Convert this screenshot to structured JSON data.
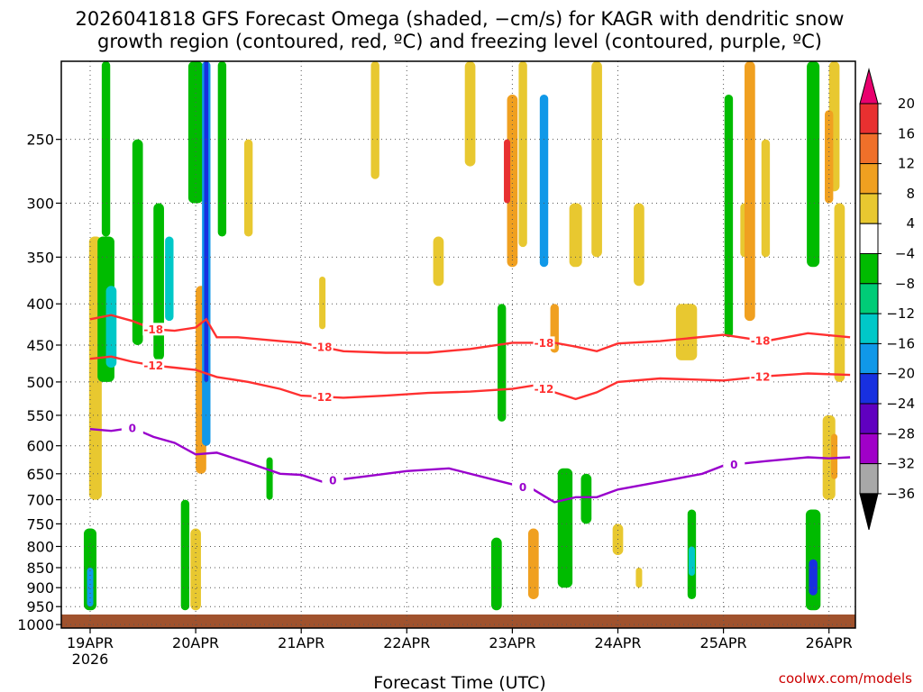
{
  "title": {
    "line1": "2026041818 GFS Forecast Omega (shaded, −cm/s) for KAGR with dendritic snow",
    "line2": "growth region (contoured, red, ºC) and freezing level (contoured, purple, ºC)"
  },
  "credit": "coolwx.com/models",
  "chart_data": {
    "type": "heatmap",
    "title": "2026041818 GFS Forecast Omega (shaded, −cm/s) for KAGR with dendritic snow growth region (contoured, red, ºC) and freezing level (contoured, purple, ºC)",
    "xlabel": "Forecast Time (UTC)",
    "ylabel": "",
    "x_ticks": [
      "19APR",
      "20APR",
      "21APR",
      "22APR",
      "23APR",
      "24APR",
      "25APR",
      "26APR"
    ],
    "x_tick_year": "2026",
    "x_range_days": [
      0.0,
      7.2
    ],
    "y_ticks": [
      250,
      300,
      350,
      400,
      450,
      500,
      550,
      600,
      650,
      700,
      750,
      800,
      850,
      900,
      950,
      1000
    ],
    "y_range_hpa": [
      1010,
      200
    ],
    "y_scale": "log-pressure (reversed)",
    "grid": true,
    "colorbar": {
      "labels": [
        "20",
        "16",
        "12",
        "8",
        "4",
        "−4",
        "−8",
        "−12",
        "−16",
        "−20",
        "−24",
        "−28",
        "−32",
        "−36"
      ],
      "colors": [
        "#e8006e",
        "#e83030",
        "#f0702a",
        "#f0a020",
        "#e8c830",
        "#ffffff",
        "#00bb00",
        "#00cc77",
        "#00c8c8",
        "#1098e8",
        "#1830e0",
        "#6000c0",
        "#a000c8",
        "#a8a8a8",
        "#000000"
      ]
    },
    "contours": [
      {
        "name": "-18",
        "color": "#ff3030",
        "x": [
          0.0,
          0.2,
          0.4,
          0.6,
          0.8,
          1.0,
          1.1,
          1.2,
          1.4,
          1.8,
          2.0,
          2.4,
          2.8,
          3.2,
          3.6,
          4.0,
          4.4,
          4.6,
          4.8,
          5.0,
          5.4,
          6.0,
          6.4,
          6.8,
          7.2
        ],
        "y": [
          418,
          413,
          420,
          430,
          432,
          428,
          418,
          440,
          440,
          445,
          447,
          458,
          460,
          460,
          455,
          447,
          447,
          452,
          458,
          448,
          445,
          437,
          445,
          435,
          440
        ]
      },
      {
        "name": "-12",
        "color": "#ff3030",
        "x": [
          0.0,
          0.2,
          0.4,
          0.6,
          0.8,
          1.0,
          1.2,
          1.5,
          1.8,
          2.0,
          2.4,
          2.8,
          3.2,
          3.6,
          4.0,
          4.2,
          4.4,
          4.6,
          4.8,
          5.0,
          5.4,
          6.0,
          6.4,
          6.8,
          7.2
        ],
        "y": [
          468,
          465,
          472,
          477,
          480,
          483,
          493,
          500,
          510,
          520,
          523,
          520,
          516,
          514,
          510,
          505,
          515,
          525,
          515,
          500,
          495,
          498,
          492,
          488,
          490
        ]
      },
      {
        "name": "0",
        "color": "#9900cc",
        "x": [
          0.0,
          0.2,
          0.4,
          0.6,
          0.8,
          1.0,
          1.2,
          1.5,
          1.8,
          2.0,
          2.2,
          2.6,
          3.0,
          3.4,
          3.8,
          4.0,
          4.2,
          4.4,
          4.6,
          4.8,
          5.0,
          5.4,
          5.8,
          6.0,
          6.4,
          6.8,
          7.0,
          7.2
        ],
        "y": [
          572,
          575,
          570,
          585,
          595,
          615,
          612,
          630,
          650,
          652,
          665,
          655,
          645,
          640,
          660,
          670,
          680,
          705,
          695,
          695,
          680,
          665,
          650,
          635,
          627,
          620,
          622,
          620
        ]
      }
    ],
    "terrain_color": "#a0522d"
  }
}
